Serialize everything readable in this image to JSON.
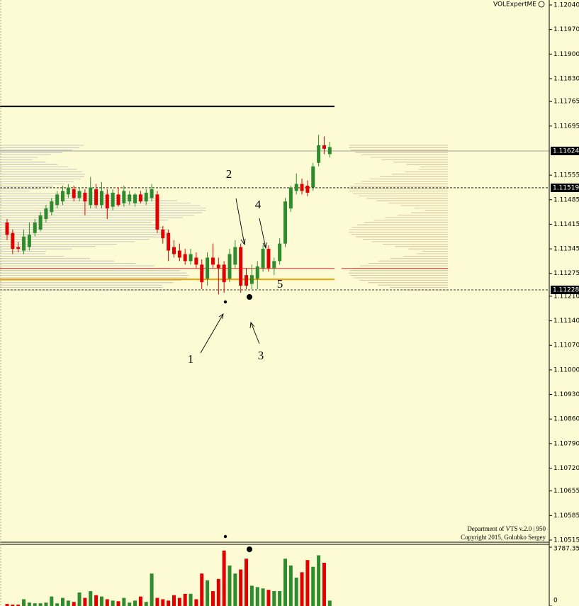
{
  "chart_data": {
    "type": "candlestick",
    "indicator": "VOLExpertME",
    "footer": [
      "Department of VTS  v.2.0 | 950",
      "Copyright 2015, Golubko Sergey"
    ],
    "bull_color": "#2e8b2e",
    "bear_color": "#e00000",
    "ylim": [
      1.10515,
      1.1204
    ],
    "yticks": [
      {
        "value": 1.1204,
        "label": "1.12040"
      },
      {
        "value": 1.1197,
        "label": "1.11970"
      },
      {
        "value": 1.119,
        "label": "1.11900"
      },
      {
        "value": 1.1183,
        "label": "1.11830"
      },
      1.11765,
      1.11695,
      1.11555,
      1.11485,
      1.11415,
      1.11345,
      1.11275,
      {
        "value": 1.1121,
        "label": "1.11210"
      },
      {
        "value": 1.1114,
        "label": "1.11140"
      },
      {
        "value": 1.1107,
        "label": "1.11070"
      },
      {
        "value": 1.11,
        "label": "1.11000"
      },
      {
        "value": 1.1093,
        "label": "1.10930"
      },
      {
        "value": 1.1086,
        "label": "1.10860"
      },
      {
        "value": 1.1079,
        "label": "1.10790"
      },
      {
        "value": 1.1072,
        "label": "1.10720"
      },
      1.10655,
      1.10585,
      1.10515
    ],
    "price_markers": [
      1.11624,
      1.11519,
      1.11228
    ],
    "levels": [
      {
        "value": 1.11751,
        "color": "#000000"
      },
      {
        "value": 1.11289,
        "color": "#e03030"
      },
      {
        "value": 1.11258,
        "color": "#f0a000"
      }
    ],
    "candles": [
      [
        1.1142,
        1.1143,
        1.1137,
        1.11385
      ],
      [
        1.1139,
        1.114,
        1.1133,
        1.11345
      ],
      [
        1.1135,
        1.11365,
        1.11335,
        1.11345
      ],
      [
        1.1134,
        1.114,
        1.1133,
        1.1138
      ],
      [
        1.1135,
        1.1142,
        1.1134,
        1.11385
      ],
      [
        1.1139,
        1.1143,
        1.1138,
        1.1142
      ],
      [
        1.114,
        1.1145,
        1.11395,
        1.1144
      ],
      [
        1.1143,
        1.1147,
        1.1142,
        1.1146
      ],
      [
        1.1145,
        1.1149,
        1.1144,
        1.1148
      ],
      [
        1.1147,
        1.1151,
        1.1146,
        1.115
      ],
      [
        1.1148,
        1.11525,
        1.1147,
        1.1151
      ],
      [
        1.115,
        1.1153,
        1.1149,
        1.1152
      ],
      [
        1.11515,
        1.11525,
        1.1148,
        1.1149
      ],
      [
        1.1149,
        1.1152,
        1.1148,
        1.1151
      ],
      [
        1.11505,
        1.11515,
        1.1144,
        1.1148
      ],
      [
        1.1147,
        1.1155,
        1.1146,
        1.1152
      ],
      [
        1.11515,
        1.1153,
        1.1146,
        1.1147
      ],
      [
        1.1147,
        1.11535,
        1.1146,
        1.1151
      ],
      [
        1.115,
        1.11515,
        1.1143,
        1.1146
      ],
      [
        1.11465,
        1.11515,
        1.11455,
        1.11505
      ],
      [
        1.115,
        1.1152,
        1.11465,
        1.1147
      ],
      [
        1.11475,
        1.11525,
        1.11465,
        1.1151
      ],
      [
        1.1148,
        1.1151,
        1.1147,
        1.115
      ],
      [
        1.11475,
        1.11505,
        1.11465,
        1.115
      ],
      [
        1.115,
        1.1151,
        1.11475,
        1.1148
      ],
      [
        1.1148,
        1.11515,
        1.1147,
        1.11505
      ],
      [
        1.1149,
        1.1153,
        1.1148,
        1.11515
      ],
      [
        1.115,
        1.1151,
        1.1139,
        1.114
      ],
      [
        1.114,
        1.1141,
        1.1136,
        1.11375
      ],
      [
        1.1139,
        1.114,
        1.1131,
        1.1134
      ],
      [
        1.1135,
        1.1137,
        1.1132,
        1.1133
      ],
      [
        1.1134,
        1.1136,
        1.1131,
        1.1132
      ],
      [
        1.1133,
        1.11345,
        1.113,
        1.1131
      ],
      [
        1.1131,
        1.11345,
        1.113,
        1.1133
      ],
      [
        1.1132,
        1.11335,
        1.1129,
        1.113
      ],
      [
        1.113,
        1.11315,
        1.1123,
        1.1125
      ],
      [
        1.1126,
        1.11335,
        1.1124,
        1.1132
      ],
      [
        1.1132,
        1.1136,
        1.1129,
        1.113
      ],
      [
        1.113,
        1.1132,
        1.11215,
        1.1129
      ],
      [
        1.113,
        1.1131,
        1.1122,
        1.1125
      ],
      [
        1.1126,
        1.11345,
        1.1125,
        1.1133
      ],
      [
        1.113,
        1.1137,
        1.1129,
        1.1135
      ],
      [
        1.1135,
        1.1136,
        1.1122,
        1.1124
      ],
      [
        1.1127,
        1.1129,
        1.1123,
        1.1124
      ],
      [
        1.11245,
        1.113,
        1.1123,
        1.1127
      ],
      [
        1.1126,
        1.1131,
        1.1123,
        1.11295
      ],
      [
        1.1129,
        1.11355,
        1.1128,
        1.11345
      ],
      [
        1.11345,
        1.11355,
        1.1128,
        1.1129
      ],
      [
        1.1129,
        1.1132,
        1.1127,
        1.1131
      ],
      [
        1.1131,
        1.11375,
        1.113,
        1.1136
      ],
      [
        1.1136,
        1.1149,
        1.1135,
        1.1148
      ],
      [
        1.1146,
        1.11525,
        1.1145,
        1.1152
      ],
      [
        1.1151,
        1.1156,
        1.115,
        1.1153
      ],
      [
        1.1153,
        1.11545,
        1.115,
        1.1151
      ],
      [
        1.11525,
        1.1154,
        1.11495,
        1.11505
      ],
      [
        1.1152,
        1.1159,
        1.1151,
        1.1158
      ],
      [
        1.1159,
        1.1167,
        1.1158,
        1.1164
      ],
      [
        1.1164,
        1.11665,
        1.11615,
        1.1163
      ],
      [
        1.11615,
        1.1165,
        1.11605,
        1.11635
      ]
    ],
    "volume_ylim": [
      0,
      3787.35
    ],
    "volume_yticks": [
      {
        "value": 3787.35,
        "label": "3787.35"
      },
      0
    ],
    "volumes": [
      130,
      87,
      87,
      435,
      218,
      174,
      174,
      218,
      609,
      174,
      522,
      348,
      261,
      870,
      522,
      957,
      696,
      609,
      435,
      348,
      305,
      522,
      218,
      348,
      609,
      261,
      2088,
      522,
      435,
      348,
      696,
      522,
      783,
      783,
      435,
      2088,
      1653,
      957,
      1740,
      3567,
      2610,
      2088,
      2349,
      3045,
      1305,
      1218,
      1131,
      1044,
      957,
      957,
      3045,
      2610,
      1827,
      2175,
      2958,
      2523,
      3263,
      2784,
      348
    ],
    "annotations": [
      "1",
      "2",
      "3",
      "4",
      "5"
    ]
  }
}
